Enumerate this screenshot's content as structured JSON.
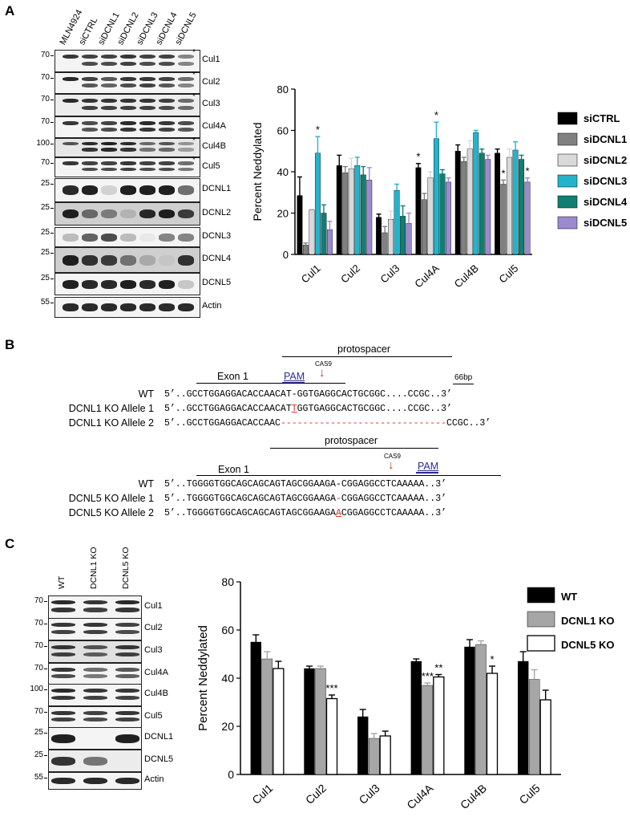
{
  "panels": {
    "a": "A",
    "b": "B",
    "c": "C"
  },
  "panel_a": {
    "lanes": [
      "MLN4924",
      "siCTRL",
      "siDCNL1",
      "siDCNL2",
      "siDCNL3",
      "siDCNL4",
      "siDCNL5"
    ],
    "blots": [
      {
        "label": "Cul1",
        "mw": "70",
        "asterisk": true
      },
      {
        "label": "Cul2",
        "mw": "70",
        "asterisk": true
      },
      {
        "label": "Cul3",
        "mw": "70",
        "asterisk": true
      },
      {
        "label": "Cul4A",
        "mw": "70",
        "asterisk": false
      },
      {
        "label": "Cul4B",
        "mw": "100",
        "asterisk": true
      },
      {
        "label": "Cul5",
        "mw": "70",
        "asterisk": true
      },
      {
        "label": "DCNL1",
        "mw": "25",
        "asterisk": false
      },
      {
        "label": "DCNL2",
        "mw": "25",
        "asterisk": false
      },
      {
        "label": "DCNL3",
        "mw": "25",
        "asterisk": false
      },
      {
        "label": "DCNL4",
        "mw": "25",
        "asterisk": false
      },
      {
        "label": "DCNL5",
        "mw": "25",
        "asterisk": false
      },
      {
        "label": "Actin",
        "mw": "55",
        "asterisk": false
      }
    ]
  },
  "panel_b": {
    "dcnl1": {
      "protospacer": "protospacer",
      "exon": "Exon 1",
      "pam": "PAM",
      "cas9": "CAS9",
      "bp": "66bp",
      "rows": [
        {
          "label": "WT",
          "prefix": "5’..",
          "seq_a": "GCCTGGAGGACACCAACAT",
          "mid": "-",
          "seq_b": "GGTGAGGCACTGCGGC",
          "gap": "....",
          "seq_c": "CCGC",
          "suffix": "..3’"
        },
        {
          "label": "DCNL1 KO Allele 1",
          "prefix": "5’..",
          "seq_a": "GCCTGGAGGACACCAACAT",
          "mid": "T",
          "seq_b": "GGTGAGGCACTGCGGC",
          "gap": "....",
          "seq_c": "CCGC",
          "suffix": "..3’"
        },
        {
          "label": "DCNL1 KO Allele 2",
          "prefix": "5’..",
          "seq_a": "GCCTGGAGGACACCAAC",
          "dashes": "------------------------------",
          "seq_c": "CCGC",
          "suffix": "..3’"
        }
      ]
    },
    "dcnl5": {
      "protospacer": "protospacer",
      "exon": "Exon 1",
      "pam": "PAM",
      "cas9": "CAS9",
      "rows": [
        {
          "label": "WT",
          "prefix": "5’..",
          "seq_a": "TGGGGTGGCAGCAGCAGTAGCGGAAGA",
          "mid": "-",
          "seq_b": "CGGAGGCCTCAAAAA",
          "suffix": "..3’"
        },
        {
          "label": "DCNL5 KO Allele 1",
          "prefix": "5’..",
          "seq_a": "TGGGGTGGCAGCAGCAGTAGCGGAAGA",
          "mid": "-",
          "seq_b": "CGGAGGCCTCAAAAA",
          "suffix": "..3’"
        },
        {
          "label": "DCNL5 KO Allele 2",
          "prefix": "5’..",
          "seq_a": "TGGGGTGGCAGCAGCAGTAGCGGAAGA",
          "mid": "A",
          "seq_b": "CGGAGGCCTCAAAAA",
          "suffix": "..3’"
        }
      ]
    }
  },
  "panel_c": {
    "lanes": [
      "WT",
      "DCNL1 KO",
      "DCNL5 KO"
    ],
    "blots": [
      {
        "label": "Cul1",
        "mw": "70"
      },
      {
        "label": "Cul2",
        "mw": "70"
      },
      {
        "label": "Cul3",
        "mw": "70"
      },
      {
        "label": "Cul4A",
        "mw": "70"
      },
      {
        "label": "Cul4B",
        "mw": "100"
      },
      {
        "label": "Cul5",
        "mw": "70"
      },
      {
        "label": "DCNL1",
        "mw": "25"
      },
      {
        "label": "DCNL5",
        "mw": "25"
      },
      {
        "label": "Actin",
        "mw": "55"
      }
    ]
  },
  "chart_data": [
    {
      "type": "bar",
      "ylabel": "Percent Neddylated",
      "ylim": [
        0,
        80
      ],
      "yticks": [
        0,
        20,
        40,
        60,
        80
      ],
      "categories": [
        "Cul1",
        "Cul2",
        "Cul3",
        "Cul4A",
        "Cul4B",
        "Cul5"
      ],
      "legend_position": "right",
      "series": [
        {
          "name": "siCTRL",
          "color": "#000000",
          "values": [
            28.5,
            43,
            18,
            42,
            50,
            49
          ],
          "errors": [
            9,
            5,
            1.5,
            2,
            3,
            2
          ]
        },
        {
          "name": "siDCNL1",
          "color": "#808080",
          "values": [
            4.5,
            39.5,
            10.5,
            26.5,
            45,
            34
          ],
          "errors": [
            1,
            3,
            3,
            3,
            2,
            2
          ]
        },
        {
          "name": "siDCNL2",
          "color": "#d9d9d9",
          "values": [
            21.5,
            41.5,
            17,
            37,
            51,
            47
          ],
          "errors": [
            0.5,
            5,
            4,
            3,
            4,
            4
          ]
        },
        {
          "name": "siDCNL3",
          "color": "#25b3cc",
          "values": [
            49,
            43,
            31,
            56,
            59,
            50.5
          ],
          "errors": [
            8,
            4,
            3,
            8,
            1,
            4
          ]
        },
        {
          "name": "siDCNL4",
          "color": "#127e71",
          "values": [
            20,
            38.5,
            18.5,
            39,
            49,
            46
          ],
          "errors": [
            4,
            4,
            5,
            2,
            2,
            2
          ]
        },
        {
          "name": "siDCNL5",
          "color": "#9b8ad0",
          "values": [
            12,
            36,
            15,
            35,
            46,
            35
          ],
          "errors": [
            4,
            6,
            5,
            2,
            2,
            2
          ]
        }
      ],
      "annotations": [
        {
          "text": "*",
          "category": "Cul1",
          "series": "siDCNL3"
        },
        {
          "text": "*",
          "category": "Cul4A",
          "series": "siCTRL"
        },
        {
          "text": "*",
          "category": "Cul4A",
          "series": "siDCNL3"
        },
        {
          "text": "*",
          "category": "Cul5",
          "series": "siDCNL1"
        },
        {
          "text": "*",
          "category": "Cul5",
          "series": "siDCNL5"
        }
      ]
    },
    {
      "type": "bar",
      "ylabel": "Percent Neddylated",
      "ylim": [
        0,
        80
      ],
      "yticks": [
        0,
        20,
        40,
        60,
        80
      ],
      "categories": [
        "Cul1",
        "Cul2",
        "Cul3",
        "Cul4A",
        "Cul4B",
        "Cul5"
      ],
      "legend_position": "right",
      "series": [
        {
          "name": "WT",
          "color": "#000000",
          "values": [
            55,
            44,
            24,
            47,
            53,
            47
          ],
          "errors": [
            3,
            1,
            3,
            1,
            3,
            4
          ]
        },
        {
          "name": "DCNL1 KO",
          "color": "#a6a6a6",
          "values": [
            48,
            44,
            15,
            37,
            54,
            39.5
          ],
          "errors": [
            3,
            1,
            2,
            1,
            1.5,
            4
          ]
        },
        {
          "name": "DCNL5 KO",
          "color": "#ffffff",
          "values": [
            44,
            31.5,
            16,
            40.5,
            42,
            31
          ],
          "errors": [
            3,
            1.5,
            2,
            1,
            3,
            4
          ]
        }
      ],
      "annotations": [
        {
          "text": "***",
          "category": "Cul2",
          "series": "DCNL5 KO"
        },
        {
          "text": "***",
          "category": "Cul4A",
          "series": "DCNL1 KO"
        },
        {
          "text": "**",
          "category": "Cul4A",
          "series": "DCNL5 KO"
        },
        {
          "text": "*",
          "category": "Cul4B",
          "series": "DCNL5 KO"
        }
      ]
    }
  ]
}
